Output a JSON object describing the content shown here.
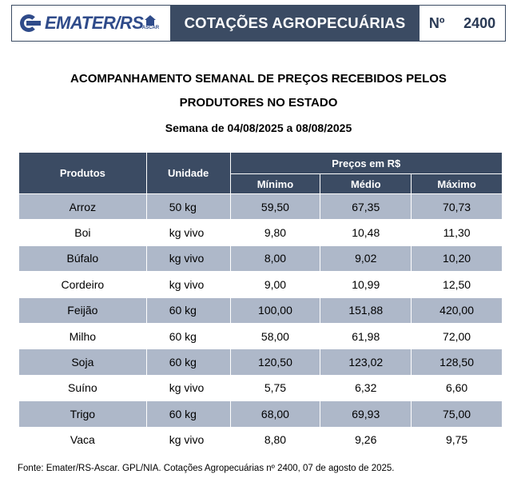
{
  "header": {
    "logo_text": "EMATER/RS",
    "logo_sub": "ASCAR",
    "title": "COTAÇÕES AGROPECUÁRIAS",
    "number_label": "Nº",
    "number": "2400"
  },
  "doc": {
    "title_line1": "ACOMPANHAMENTO SEMANAL DE PREÇOS RECEBIDOS PELOS",
    "title_line2": "PRODUTORES NO ESTADO",
    "week": "Semana de 04/08/2025 a 08/08/2025"
  },
  "table": {
    "headers": {
      "product": "Produtos",
      "unit": "Unidade",
      "prices": "Preços em R$",
      "min": "Mínimo",
      "avg": "Médio",
      "max": "Máximo"
    },
    "rows": [
      {
        "product": "Arroz",
        "unit": "50 kg",
        "min": "59,50",
        "avg": "67,35",
        "max": "70,73"
      },
      {
        "product": "Boi",
        "unit": "kg vivo",
        "min": "9,80",
        "avg": "10,48",
        "max": "11,30"
      },
      {
        "product": "Búfalo",
        "unit": "kg vivo",
        "min": "8,00",
        "avg": "9,02",
        "max": "10,20"
      },
      {
        "product": "Cordeiro",
        "unit": "kg vivo",
        "min": "9,00",
        "avg": "10,99",
        "max": "12,50"
      },
      {
        "product": "Feijão",
        "unit": "60 kg",
        "min": "100,00",
        "avg": "151,88",
        "max": "420,00"
      },
      {
        "product": "Milho",
        "unit": "60 kg",
        "min": "58,00",
        "avg": "61,98",
        "max": "72,00"
      },
      {
        "product": "Soja",
        "unit": "60 kg",
        "min": "120,50",
        "avg": "123,02",
        "max": "128,50"
      },
      {
        "product": "Suíno",
        "unit": "kg vivo",
        "min": "5,75",
        "avg": "6,32",
        "max": "6,60"
      },
      {
        "product": "Trigo",
        "unit": "60 kg",
        "min": "68,00",
        "avg": "69,93",
        "max": "75,00"
      },
      {
        "product": "Vaca",
        "unit": "kg vivo",
        "min": "8,80",
        "avg": "9,26",
        "max": "9,75"
      }
    ]
  },
  "footer": "Fonte: Emater/RS-Ascar. GPL/NIA. Cotações Agropecuárias nº 2400, 07 de agosto de 2025.",
  "colors": {
    "header_bg": "#3b4b63",
    "row_shade": "#aeb8c9",
    "logo_blue": "#2f4b8a"
  }
}
